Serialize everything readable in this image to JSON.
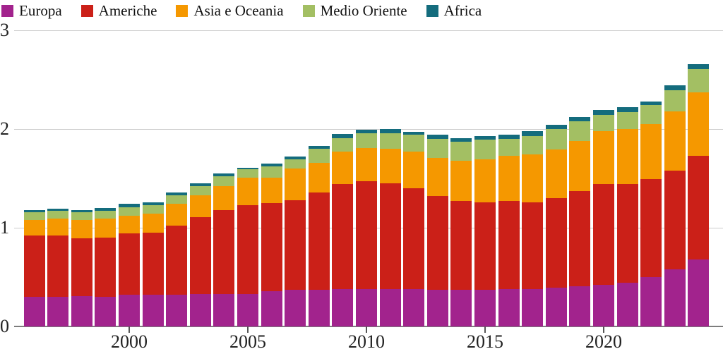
{
  "page": {
    "background": "#ffffff"
  },
  "legend_position": "top-left",
  "axes": {
    "y": {
      "tick_labels": [
        "0",
        "1",
        "2",
        "3"
      ],
      "tick_values": [
        0,
        1,
        2,
        3
      ]
    },
    "x": {
      "tick_labels": [
        "2000",
        "2005",
        "2010",
        "2015",
        "2020"
      ],
      "tick_values": [
        2000,
        2005,
        2010,
        2015,
        2020
      ]
    }
  },
  "colors": {
    "europa": "#a2238d",
    "americhe": "#cb2018",
    "asia_e_oceania": "#f59800",
    "medio_oriente": "#a3bf63",
    "africa": "#146c7d",
    "gridline": "#cccccc",
    "axis_line": "#7d7d7d",
    "text": "#1a1a1a"
  },
  "chart_data": {
    "type": "bar",
    "stacked": true,
    "title": "",
    "xlabel": "",
    "ylabel": "",
    "ylim": [
      0,
      3
    ],
    "grid": true,
    "legend_position": "top-left",
    "categories": [
      1996,
      1997,
      1998,
      1999,
      2000,
      2001,
      2002,
      2003,
      2004,
      2005,
      2006,
      2007,
      2008,
      2009,
      2010,
      2011,
      2012,
      2013,
      2014,
      2015,
      2016,
      2017,
      2018,
      2019,
      2020,
      2021,
      2022,
      2023,
      2024
    ],
    "series": [
      {
        "name": "Europa",
        "color": "#a2238d",
        "values": [
          0.3,
          0.3,
          0.31,
          0.3,
          0.32,
          0.32,
          0.32,
          0.33,
          0.33,
          0.33,
          0.36,
          0.37,
          0.37,
          0.38,
          0.38,
          0.38,
          0.38,
          0.37,
          0.37,
          0.37,
          0.38,
          0.38,
          0.39,
          0.41,
          0.42,
          0.44,
          0.5,
          0.58,
          0.68
        ]
      },
      {
        "name": "Americhe",
        "color": "#cb2018",
        "values": [
          0.62,
          0.62,
          0.58,
          0.6,
          0.62,
          0.63,
          0.7,
          0.78,
          0.85,
          0.9,
          0.89,
          0.91,
          0.99,
          1.06,
          1.09,
          1.07,
          1.02,
          0.95,
          0.9,
          0.89,
          0.89,
          0.88,
          0.91,
          0.96,
          1.02,
          1.0,
          0.99,
          1.0,
          1.05
        ]
      },
      {
        "name": "Asia e Oceania",
        "color": "#f59800",
        "values": [
          0.16,
          0.17,
          0.19,
          0.19,
          0.18,
          0.19,
          0.22,
          0.22,
          0.24,
          0.28,
          0.26,
          0.32,
          0.3,
          0.33,
          0.34,
          0.35,
          0.37,
          0.39,
          0.41,
          0.43,
          0.46,
          0.48,
          0.49,
          0.51,
          0.54,
          0.56,
          0.56,
          0.6,
          0.64
        ]
      },
      {
        "name": "Medio Oriente",
        "color": "#a3bf63",
        "values": [
          0.08,
          0.08,
          0.08,
          0.08,
          0.09,
          0.09,
          0.09,
          0.09,
          0.1,
          0.08,
          0.11,
          0.09,
          0.14,
          0.14,
          0.15,
          0.16,
          0.17,
          0.19,
          0.19,
          0.2,
          0.17,
          0.19,
          0.21,
          0.2,
          0.16,
          0.17,
          0.19,
          0.21,
          0.24
        ]
      },
      {
        "name": "Africa",
        "color": "#146c7d",
        "values": [
          0.02,
          0.02,
          0.02,
          0.03,
          0.03,
          0.03,
          0.03,
          0.03,
          0.03,
          0.02,
          0.03,
          0.03,
          0.03,
          0.04,
          0.03,
          0.04,
          0.03,
          0.04,
          0.04,
          0.04,
          0.04,
          0.05,
          0.04,
          0.04,
          0.05,
          0.05,
          0.04,
          0.05,
          0.05
        ]
      }
    ]
  }
}
